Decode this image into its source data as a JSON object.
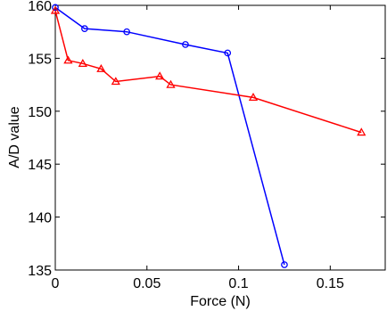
{
  "chart_data": {
    "type": "line",
    "title": "",
    "xlabel": "Force (N)",
    "ylabel": "A/D value",
    "xlim": [
      0,
      0.18
    ],
    "ylim": [
      135,
      160
    ],
    "xticks": [
      0,
      0.05,
      0.1,
      0.15
    ],
    "xtick_labels": [
      "0",
      "0.05",
      "0.1",
      "0.15"
    ],
    "yticks": [
      135,
      140,
      145,
      150,
      155,
      160
    ],
    "ytick_labels": [
      "135",
      "140",
      "145",
      "150",
      "155",
      "160"
    ],
    "grid": false,
    "legend": "none",
    "series": [
      {
        "color": "#0000ff",
        "marker": "circle",
        "x": [
          0.0,
          0.016,
          0.039,
          0.071,
          0.094,
          0.125
        ],
        "y": [
          159.8,
          157.8,
          157.5,
          156.3,
          155.5,
          135.5
        ]
      },
      {
        "color": "#ff0000",
        "marker": "triangle",
        "x": [
          0.0,
          0.007,
          0.015,
          0.025,
          0.033,
          0.057,
          0.063,
          0.108,
          0.167
        ],
        "y": [
          159.5,
          154.8,
          154.5,
          154.0,
          152.8,
          153.3,
          152.5,
          151.3,
          148.0
        ]
      }
    ]
  }
}
